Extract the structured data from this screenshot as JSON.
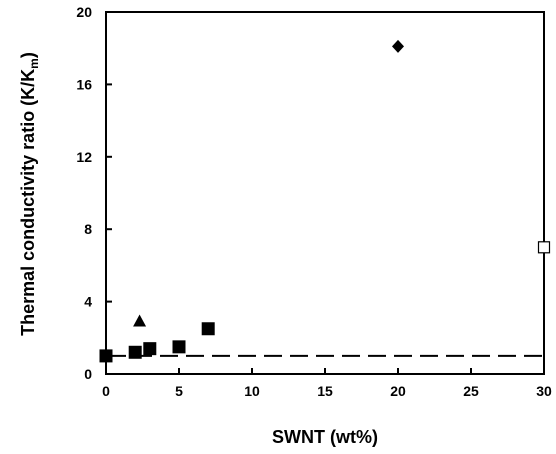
{
  "chart_data": {
    "type": "scatter",
    "xlabel": "SWNT (wt%)",
    "ylabel": "Thermal conductivity ratio (K/K",
    "ylabel_subscript": "m",
    "ylabel_close": ")",
    "xlim": [
      0,
      30
    ],
    "ylim": [
      0,
      20
    ],
    "x_ticks": [
      0,
      5,
      10,
      15,
      20,
      25,
      30
    ],
    "y_ticks": [
      0,
      4,
      8,
      12,
      16,
      20
    ],
    "x_tick_labels": [
      "0",
      "5",
      "10",
      "15",
      "20",
      "25",
      "30"
    ],
    "y_tick_labels": [
      "0",
      "4",
      "8",
      "12",
      "16",
      "20"
    ],
    "grid": false,
    "reference_line": {
      "y": 1.0,
      "style": "dashed",
      "color": "#000000"
    },
    "series": [
      {
        "marker": "square-filled",
        "points": [
          [
            0,
            1.0
          ],
          [
            2,
            1.2
          ],
          [
            3,
            1.4
          ],
          [
            5,
            1.5
          ],
          [
            7,
            2.5
          ]
        ]
      },
      {
        "marker": "triangle-filled",
        "points": [
          [
            2.3,
            2.9
          ]
        ]
      },
      {
        "marker": "diamond-filled",
        "points": [
          [
            20,
            18.1
          ]
        ]
      },
      {
        "marker": "square-open",
        "points": [
          [
            30,
            7.0
          ]
        ]
      }
    ]
  }
}
